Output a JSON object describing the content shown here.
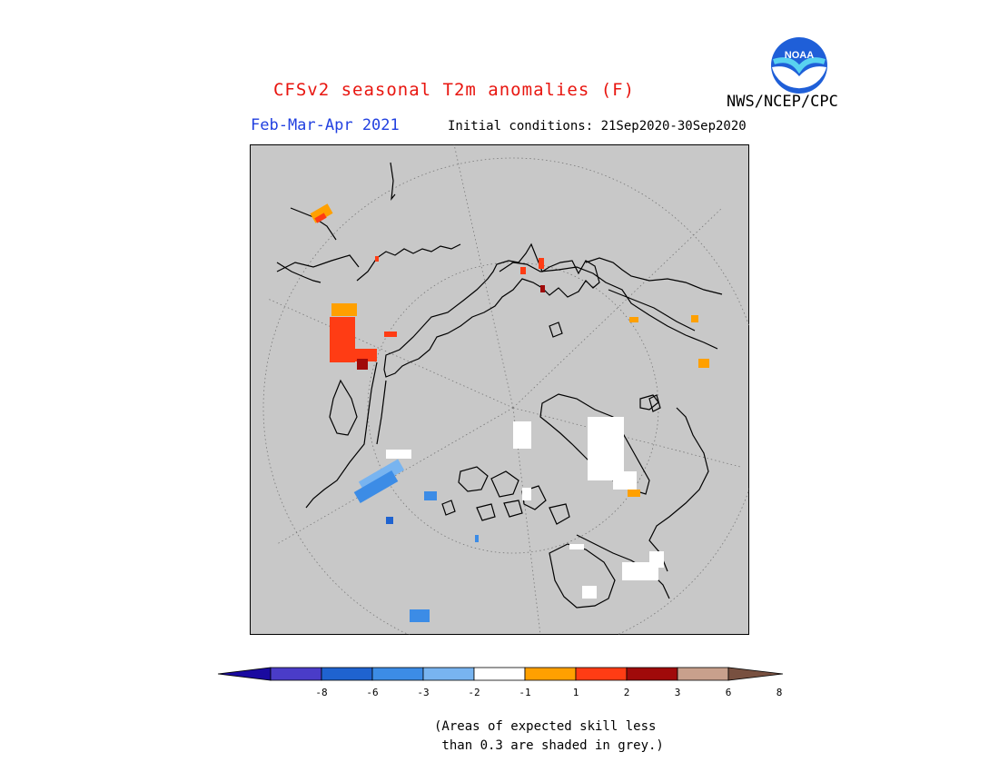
{
  "header": {
    "title": "CFSv2 seasonal T2m anomalies (F)",
    "agency": "NWS/NCEP/CPC",
    "logo_text": "NOAA",
    "season": "Feb-Mar-Apr 2021",
    "initial_conditions": "Initial conditions: 21Sep2020-30Sep2020"
  },
  "map": {
    "projection": "north polar stereographic",
    "background_color": "#c8c8c8",
    "coastline_color": "#000000"
  },
  "legend": {
    "ticks": [
      "-8",
      "-6",
      "-3",
      "-2",
      "-1",
      "1",
      "2",
      "3",
      "6",
      "8"
    ],
    "colors": [
      "#1a0aa0",
      "#4a3cc8",
      "#1f63d0",
      "#3c8ce6",
      "#78b4f0",
      "#ffffff",
      "#ffa000",
      "#ff3c14",
      "#a00a0a",
      "#c8a08c",
      "#785040"
    ]
  },
  "footnote": {
    "line1": "(Areas of expected skill less",
    "line2": " than 0.3 are shaded in grey.)"
  }
}
